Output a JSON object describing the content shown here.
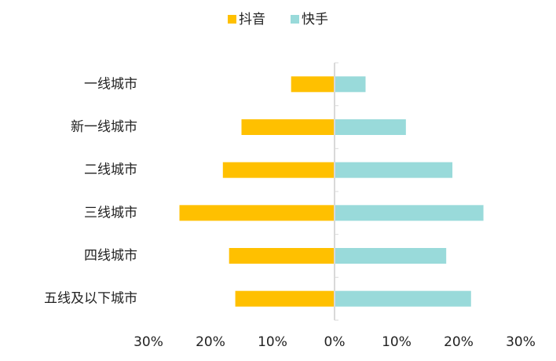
{
  "chart_data": {
    "type": "butterfly-bar",
    "categories": [
      "一线城市",
      "新一线城市",
      "二线城市",
      "三线城市",
      "四线城市",
      "五线及以下城市"
    ],
    "series": [
      {
        "name": "抖音",
        "color": "#FFC000",
        "values": [
          -7,
          -15,
          -18,
          -25,
          -17,
          -16
        ]
      },
      {
        "name": "快手",
        "color": "#99DADA",
        "values": [
          5,
          11.5,
          19,
          24,
          18,
          22
        ]
      }
    ],
    "xlim": [
      -30,
      30
    ],
    "xticks": [
      {
        "value": -30,
        "label": "30%"
      },
      {
        "value": -20,
        "label": "20%"
      },
      {
        "value": -10,
        "label": "10%"
      },
      {
        "value": 0,
        "label": "0%"
      },
      {
        "value": 10,
        "label": "10%"
      },
      {
        "value": 20,
        "label": "20%"
      },
      {
        "value": 30,
        "label": "30%"
      }
    ],
    "legend": "top"
  }
}
